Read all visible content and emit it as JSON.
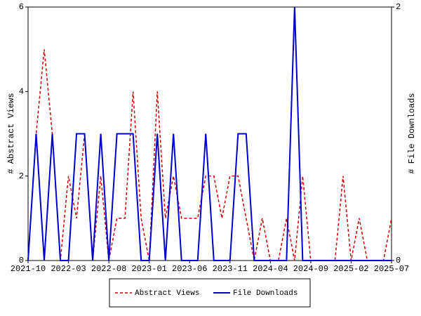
{
  "chart_data": {
    "type": "line",
    "categories": [
      "2021-10",
      null,
      null,
      null,
      null,
      "2022-03",
      null,
      null,
      null,
      null,
      "2022-08",
      null,
      null,
      null,
      null,
      "2023-01",
      null,
      null,
      null,
      null,
      "2023-06",
      null,
      null,
      null,
      null,
      "2023-11",
      null,
      null,
      null,
      null,
      "2024-04",
      null,
      null,
      null,
      null,
      "2024-09",
      null,
      null,
      null,
      null,
      "2025-02",
      null,
      null,
      null,
      null,
      "2025-07"
    ],
    "series": [
      {
        "name": "Abstract Views",
        "color": "#cc0000",
        "values": [
          0,
          3,
          5,
          3,
          0,
          2,
          1,
          3,
          0,
          2,
          0,
          1,
          1,
          4,
          1,
          0,
          4,
          1,
          2,
          1,
          1,
          1,
          2,
          2,
          1,
          2,
          2,
          1,
          0,
          1,
          0,
          0,
          1,
          0,
          2,
          0,
          0,
          0,
          0,
          2,
          0,
          1,
          0,
          0,
          0,
          1
        ]
      },
      {
        "name": "File Downloads",
        "color": "#0000cc",
        "axis": "y2",
        "values": [
          0,
          1,
          0,
          1,
          0,
          0,
          1,
          1,
          0,
          1,
          0,
          1,
          1,
          1,
          0,
          0,
          1,
          0,
          1,
          0,
          0,
          0,
          1,
          0,
          0,
          0,
          1,
          1,
          0,
          0,
          0,
          0,
          0,
          2,
          0,
          0,
          0,
          0,
          0,
          0,
          0,
          0,
          0,
          0,
          0,
          0
        ]
      }
    ],
    "ylabel": "# Abstract Views",
    "y2label": "# File Downloads",
    "ylim": [
      0,
      6
    ],
    "yticks": [
      0,
      2,
      4,
      6
    ],
    "y2lim": [
      0,
      2
    ],
    "y2ticks": [
      0,
      2
    ],
    "legend": "bottom"
  }
}
